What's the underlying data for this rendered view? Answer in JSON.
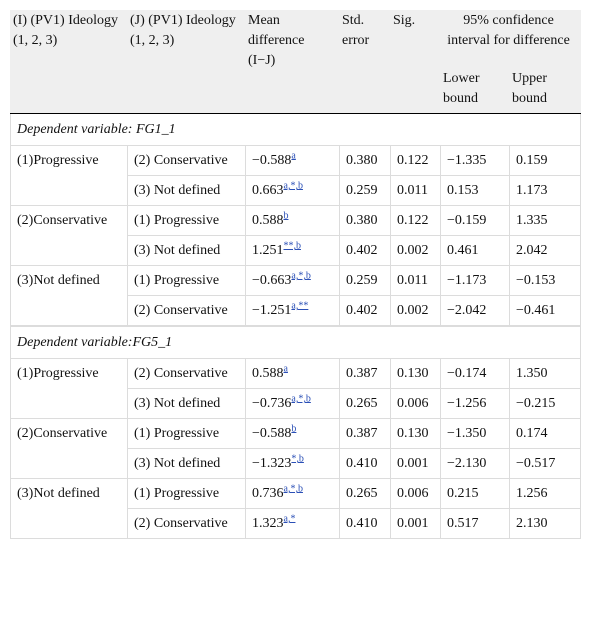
{
  "header": {
    "col_i": "(I) (PV1) Ideology (1, 2, 3)",
    "col_j": "(J) (PV1) Ideology (1, 2, 3)",
    "mean": "Mean difference (I−J)",
    "se": "Std. error",
    "sig": "Sig.",
    "ci": "95% confidence interval for difference",
    "lower": "Lower bound",
    "upper": "Upper bound"
  },
  "sections": [
    {
      "title": "Dependent variable: FG1_1",
      "groups": [
        {
          "i": "(1)Progressive",
          "rows": [
            {
              "j": "(2) Conservative",
              "mean": "−0.588",
              "notes": "a",
              "se": "0.380",
              "sig": "0.122",
              "lower": "−1.335",
              "upper": "0.159"
            },
            {
              "j": "(3) Not defined",
              "mean": "0.663",
              "notes": "a,*,b",
              "se": "0.259",
              "sig": "0.011",
              "lower": "0.153",
              "upper": "1.173"
            }
          ]
        },
        {
          "i": "(2)Conservative",
          "rows": [
            {
              "j": "(1) Progressive",
              "mean": "0.588",
              "notes": "b",
              "se": "0.380",
              "sig": "0.122",
              "lower": "−0.159",
              "upper": "1.335"
            },
            {
              "j": "(3) Not defined",
              "mean": "1.251",
              "notes": "**,b",
              "se": "0.402",
              "sig": "0.002",
              "lower": "0.461",
              "upper": "2.042"
            }
          ]
        },
        {
          "i": "(3)Not defined",
          "rows": [
            {
              "j": "(1) Progressive",
              "mean": "−0.663",
              "notes": "a,*,b",
              "se": "0.259",
              "sig": "0.011",
              "lower": "−1.173",
              "upper": "−0.153"
            },
            {
              "j": "(2) Conservative",
              "mean": "−1.251",
              "notes": "a,**",
              "se": "0.402",
              "sig": "0.002",
              "lower": "−2.042",
              "upper": "−0.461"
            }
          ]
        }
      ]
    },
    {
      "title": "Dependent variable:FG5_1",
      "groups": [
        {
          "i": "(1)Progressive",
          "rows": [
            {
              "j": "(2) Conservative",
              "mean": "0.588",
              "notes": "a",
              "se": "0.387",
              "sig": "0.130",
              "lower": "−0.174",
              "upper": "1.350"
            },
            {
              "j": "(3) Not defined",
              "mean": "−0.736",
              "notes": "a,*,b",
              "se": "0.265",
              "sig": "0.006",
              "lower": "−1.256",
              "upper": "−0.215"
            }
          ]
        },
        {
          "i": "(2)Conservative",
          "rows": [
            {
              "j": "(1) Progressive",
              "mean": "−0.588",
              "notes": "b",
              "se": "0.387",
              "sig": "0.130",
              "lower": "−1.350",
              "upper": "0.174"
            },
            {
              "j": "(3) Not defined",
              "mean": "−1.323",
              "notes": "*,b",
              "se": "0.410",
              "sig": "0.001",
              "lower": "−2.130",
              "upper": "−0.517"
            }
          ]
        },
        {
          "i": "(3)Not defined",
          "rows": [
            {
              "j": "(1) Progressive",
              "mean": "0.736",
              "notes": "a,*,b",
              "se": "0.265",
              "sig": "0.006",
              "lower": "0.215",
              "upper": "1.256"
            },
            {
              "j": "(2) Conservative",
              "mean": "1.323",
              "notes": "a,*",
              "se": "0.410",
              "sig": "0.001",
              "lower": "0.517",
              "upper": "2.130"
            }
          ]
        }
      ]
    }
  ]
}
